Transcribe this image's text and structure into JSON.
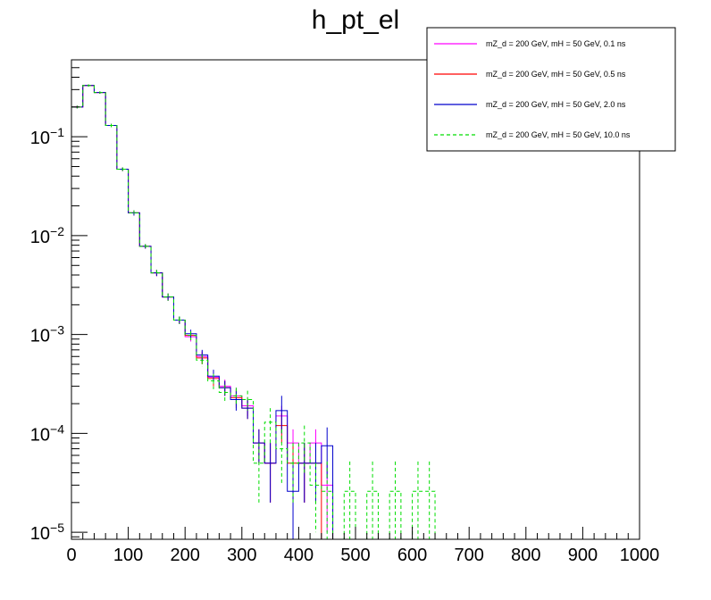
{
  "chart_data": {
    "type": "line",
    "title": "h_pt_el",
    "xlabel": "",
    "ylabel": "",
    "xscale": "linear",
    "yscale": "log",
    "xlim": [
      0,
      1000
    ],
    "ylim": [
      8.5e-06,
      0.6
    ],
    "grid": false,
    "legend_position": "top-right",
    "bin_width": 20,
    "x_ticks": [
      {
        "value": 0,
        "label": "0"
      },
      {
        "value": 100,
        "label": "100"
      },
      {
        "value": 200,
        "label": "200"
      },
      {
        "value": 300,
        "label": "300"
      },
      {
        "value": 400,
        "label": "400"
      },
      {
        "value": 500,
        "label": "500"
      },
      {
        "value": 600,
        "label": "600"
      },
      {
        "value": 700,
        "label": "700"
      },
      {
        "value": 800,
        "label": "800"
      },
      {
        "value": 900,
        "label": "900"
      },
      {
        "value": 1000,
        "label": "1000"
      }
    ],
    "y_ticks": [
      {
        "value": 0.1,
        "base": "10",
        "exp": "−1"
      },
      {
        "value": 0.01,
        "base": "10",
        "exp": "−2"
      },
      {
        "value": 0.001,
        "base": "10",
        "exp": "−3"
      },
      {
        "value": 0.0001,
        "base": "10",
        "exp": "−4"
      },
      {
        "value": 1e-05,
        "base": "10",
        "exp": "−5"
      }
    ],
    "series": [
      {
        "name": "mZ_d = 200 GeV, mH = 50 GeV, 0.1 ns",
        "color": "#ff00ff",
        "dash": "solid",
        "values": [
          0.2,
          0.33,
          0.28,
          0.13,
          0.047,
          0.017,
          0.0078,
          0.0042,
          0.0024,
          0.0014,
          0.00095,
          0.0006,
          0.00037,
          0.0003,
          0.00024,
          0.00019,
          8e-05,
          5e-05,
          0.00015,
          8e-05,
          5e-05,
          8e-05,
          3e-05,
          0,
          0,
          0,
          0,
          0,
          0,
          0,
          0,
          0,
          0,
          0,
          0,
          0,
          0,
          0,
          0,
          0,
          0,
          0,
          0,
          0,
          0,
          0,
          0,
          0,
          0,
          0
        ],
        "errors": [
          0.006,
          0.008,
          0.007,
          0.005,
          0.002,
          0.001,
          0.0004,
          0.0003,
          0.0002,
          0.00012,
          0.0001,
          8e-05,
          6e-05,
          5e-05,
          5e-05,
          4e-05,
          3e-05,
          3e-05,
          4e-05,
          3e-05,
          3e-05,
          3e-05,
          2e-05,
          0,
          0,
          0,
          0,
          0,
          0,
          0,
          0,
          0,
          0,
          0,
          0,
          0,
          0,
          0,
          0,
          0,
          0,
          0,
          0,
          0,
          0,
          0,
          0,
          0,
          0,
          0
        ]
      },
      {
        "name": "mZ_d = 200 GeV, mH = 50 GeV, 0.5 ns",
        "color": "#ff0000",
        "dash": "solid",
        "values": [
          0.2,
          0.33,
          0.28,
          0.13,
          0.047,
          0.017,
          0.0078,
          0.0042,
          0.0024,
          0.0014,
          0.00098,
          0.00058,
          0.00036,
          0.00029,
          0.00023,
          0.00018,
          8e-05,
          5e-05,
          0.00012,
          5e-05,
          5e-05,
          5e-05,
          0,
          0,
          0,
          0,
          0,
          0,
          0,
          0,
          0,
          0,
          0,
          0,
          0,
          0,
          0,
          0,
          0,
          0,
          0,
          0,
          0,
          0,
          0,
          0,
          0,
          0,
          0,
          0
        ],
        "errors": [
          0.006,
          0.008,
          0.007,
          0.005,
          0.002,
          0.001,
          0.0004,
          0.0003,
          0.0002,
          0.00012,
          0.0001,
          8e-05,
          6e-05,
          5e-05,
          5e-05,
          4e-05,
          3e-05,
          3e-05,
          4e-05,
          3e-05,
          3e-05,
          3e-05,
          0,
          0,
          0,
          0,
          0,
          0,
          0,
          0,
          0,
          0,
          0,
          0,
          0,
          0,
          0,
          0,
          0,
          0,
          0,
          0,
          0,
          0,
          0,
          0,
          0,
          0,
          0,
          0
        ]
      },
      {
        "name": "mZ_d = 200 GeV, mH = 50 GeV, 2.0 ns",
        "color": "#0000cc",
        "dash": "solid",
        "values": [
          0.2,
          0.33,
          0.28,
          0.13,
          0.047,
          0.017,
          0.0078,
          0.0042,
          0.0024,
          0.0014,
          0.00102,
          0.00062,
          0.00038,
          0.00029,
          0.00022,
          0.00018,
          8e-05,
          5e-05,
          0.00017,
          2.6e-05,
          5e-05,
          5e-05,
          7.5e-05,
          0,
          0,
          0,
          0,
          0,
          0,
          0,
          0,
          0,
          0,
          0,
          0,
          0,
          0,
          0,
          0,
          0,
          0,
          0,
          0,
          0,
          0,
          0,
          0,
          0,
          0,
          0
        ],
        "errors": [
          0.006,
          0.008,
          0.007,
          0.005,
          0.002,
          0.001,
          0.0004,
          0.0003,
          0.0002,
          0.00012,
          0.0001,
          8e-05,
          6e-05,
          5e-05,
          5e-05,
          4e-05,
          3e-05,
          3e-05,
          7e-05,
          2.6e-05,
          3e-05,
          3e-05,
          4e-05,
          0,
          0,
          0,
          0,
          0,
          0,
          0,
          0,
          0,
          0,
          0,
          0,
          0,
          0,
          0,
          0,
          0,
          0,
          0,
          0,
          0,
          0,
          0,
          0,
          0,
          0,
          0
        ]
      },
      {
        "name": "mZ_d = 200 GeV, mH = 50 GeV, 10.0 ns",
        "color": "#00dd00",
        "dash": "dashed",
        "values": [
          0.2,
          0.33,
          0.28,
          0.13,
          0.047,
          0.017,
          0.0078,
          0.0042,
          0.0024,
          0.0014,
          0.00098,
          0.00055,
          0.00034,
          0.00026,
          0.00024,
          0.00022,
          5e-05,
          0.00013,
          7e-05,
          5e-05,
          8e-05,
          3e-05,
          2.6e-05,
          0,
          2.6e-05,
          0,
          2.6e-05,
          0,
          2.6e-05,
          0,
          2.6e-05,
          2.6e-05,
          0,
          0,
          0,
          0,
          0,
          0,
          0,
          0,
          0,
          0,
          0,
          0,
          0,
          0,
          0,
          0,
          0,
          0
        ],
        "errors": [
          0.006,
          0.008,
          0.007,
          0.005,
          0.002,
          0.001,
          0.0004,
          0.0003,
          0.0002,
          0.00012,
          0.0001,
          8e-05,
          6e-05,
          5e-05,
          5e-05,
          5e-05,
          3e-05,
          5e-05,
          4e-05,
          3e-05,
          4e-05,
          2e-05,
          2.6e-05,
          0,
          2.6e-05,
          0,
          2.6e-05,
          0,
          2.6e-05,
          0,
          2.6e-05,
          2.6e-05,
          0,
          0,
          0,
          0,
          0,
          0,
          0,
          0,
          0,
          0,
          0,
          0,
          0,
          0,
          0,
          0,
          0,
          0
        ]
      }
    ]
  }
}
